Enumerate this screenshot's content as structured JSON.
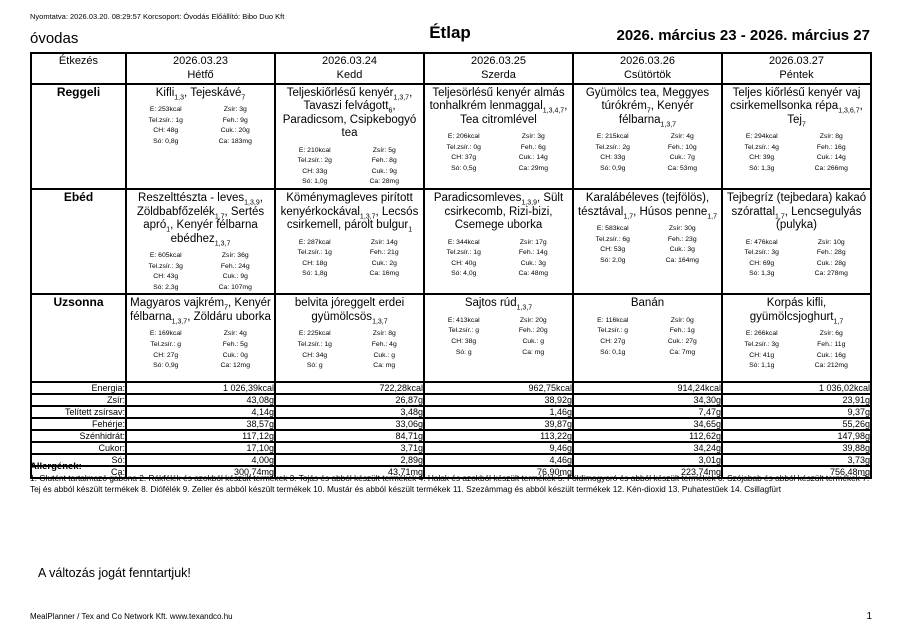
{
  "page": {
    "print_line": "Nyomtatva: 2026.03.20. 08:29:57 Korcsoport: Óvodás Előállító: Bibo Duo Kft",
    "group_name": "óvodas",
    "title": "Étlap",
    "date_range": "2026. március 23 - 2026. március 27",
    "notice": "A változás jogát fenntartjuk!",
    "footer": "MealPlanner / Tex and Co Network Kft. www.texandco.hu",
    "page_number": "1"
  },
  "table": {
    "corner_label": "Étkezés",
    "row_labels": {
      "reggeli": "Reggeli",
      "ebed": "Ebéd",
      "uzsonna": "Uzsonna"
    },
    "summary_labels": [
      "Energia:",
      "Zsír:",
      "Telített zsírsav:",
      "Fehérje:",
      "Szénhidrát:",
      "Cukor:",
      "Só:",
      "Ca:"
    ]
  },
  "days": [
    {
      "date": "2026.03.23",
      "day": "Hétfő",
      "meals": {
        "reggeli": {
          "title": "Kifli~1,3~, Tejeskávé~7~",
          "nut": [
            "E: 253kcal",
            "Tel.zsír.: 1g",
            "CH: 48g",
            "Só: 0,8g",
            "Zsír: 3g",
            "Feh.: 9g",
            "Cuk.: 20g",
            "Ca: 183mg"
          ]
        },
        "ebed": {
          "title": "Reszelttészta - leves~1,3,9~, Zöldbabfőzelék~1,7~, Sertés apró~1~, Kenyér félbarna ebédhez~1,3,7~",
          "nut": [
            "E: 605kcal",
            "Tel.zsír.: 3g",
            "CH: 43g",
            "Só: 2,3g",
            "Zsír: 36g",
            "Feh.: 24g",
            "Cuk.: 9g",
            "Ca: 107mg"
          ]
        },
        "uzsonna": {
          "title": "Magyaros vajkrém~7~, Kenyér félbarna~1,3,7~, Zöldáru uborka",
          "nut": [
            "E: 169kcal",
            "Tel.zsír.: g",
            "CH: 27g",
            "Só: 0,9g",
            "Zsír: 4g",
            "Feh.: 5g",
            "Cuk.: 0g",
            "Ca: 12mg"
          ]
        }
      },
      "totals": [
        "1 026,39kcal",
        "43,08g",
        "4,14g",
        "38,57g",
        "117,12g",
        "17,10g",
        "4,00g",
        "300,74mg"
      ]
    },
    {
      "date": "2026.03.24",
      "day": "Kedd",
      "meals": {
        "reggeli": {
          "title": "Teljeskiőrlésű kenyér~1,3,7~, Tavaszi felvágott~6~, Paradicsom, Csipkebogyó tea",
          "nut": [
            "E: 210kcal",
            "Tel.zsír.: 2g",
            "CH: 33g",
            "Só: 1,0g",
            "Zsír: 5g",
            "Feh.: 8g",
            "Cuk.: 9g",
            "Ca: 28mg"
          ]
        },
        "ebed": {
          "title": "Köménymagleves pirított kenyérkockával~1,3,7~, Lecsós csirkemell, párolt bulgur~1~",
          "nut": [
            "E: 287kcal",
            "Tel.zsír.: 1g",
            "CH: 18g",
            "Só: 1,8g",
            "Zsír: 14g",
            "Feh.: 21g",
            "Cuk.: 2g",
            "Ca: 16mg"
          ]
        },
        "uzsonna": {
          "title": "belvita jóreggelt erdei gyümölcsös~1,3,7~",
          "nut": [
            "E: 225kcal",
            "Tel.zsír.: 1g",
            "CH: 34g",
            "Só: g",
            "Zsír: 8g",
            "Feh.: 4g",
            "Cuk.: g",
            "Ca: mg"
          ]
        }
      },
      "totals": [
        "722,28kcal",
        "26,87g",
        "3,48g",
        "33,06g",
        "84,71g",
        "3,71g",
        "2,89g",
        "43,71mg"
      ]
    },
    {
      "date": "2026.03.25",
      "day": "Szerda",
      "meals": {
        "reggeli": {
          "title": "Teljesörlésű kenyér almás tonhalkrém lenmaggal~1,3,4,7~, Tea citromlével",
          "nut": [
            "E: 206kcal",
            "Tel.zsír.: 0g",
            "CH: 37g",
            "Só: 0,5g",
            "Zsír: 3g",
            "Feh.: 6g",
            "Cuk.: 14g",
            "Ca: 29mg"
          ]
        },
        "ebed": {
          "title": "Paradicsomleves~1,3,9~, Sült csirkecomb, Rizi-bizi, Csemege uborka",
          "nut": [
            "E: 344kcal",
            "Tel.zsír.: 1g",
            "CH: 40g",
            "Só: 4,0g",
            "Zsír: 17g",
            "Feh.: 14g",
            "Cuk.: 3g",
            "Ca: 48mg"
          ]
        },
        "uzsonna": {
          "title": "Sajtos rúd~1,3,7~",
          "nut": [
            "E: 413kcal",
            "Tel.zsír.: g",
            "CH: 38g",
            "Só: g",
            "Zsír: 20g",
            "Feh.: 20g",
            "Cuk.: g",
            "Ca: mg"
          ]
        }
      },
      "totals": [
        "962,75kcal",
        "38,92g",
        "1,46g",
        "39,87g",
        "113,22g",
        "9,46g",
        "4,46g",
        "76,90mg"
      ]
    },
    {
      "date": "2026.03.26",
      "day": "Csütörtök",
      "meals": {
        "reggeli": {
          "title": "Gyümölcs tea, Meggyes túrókrém~7~, Kenyér félbarna~1,3,7~",
          "nut": [
            "E: 215kcal",
            "Tel.zsír.: 2g",
            "CH: 33g",
            "Só: 0,9g",
            "Zsír: 4g",
            "Feh.: 10g",
            "Cuk.: 7g",
            "Ca: 53mg"
          ]
        },
        "ebed": {
          "title": "Karalábéleves (tejfölös), tésztával~1,7~, Húsos penne~1,7~",
          "nut": [
            "E: 583kcal",
            "Tel.zsír.: 6g",
            "CH: 53g",
            "Só: 2,0g",
            "Zsír: 30g",
            "Feh.: 23g",
            "Cuk.: 3g",
            "Ca: 164mg"
          ]
        },
        "uzsonna": {
          "title": "Banán",
          "nut": [
            "E: 116kcal",
            "Tel.zsír.: g",
            "CH: 27g",
            "Só: 0,1g",
            "Zsír: 0g",
            "Feh.: 1g",
            "Cuk.: 27g",
            "Ca: 7mg"
          ]
        }
      },
      "totals": [
        "914,24kcal",
        "34,30g",
        "7,47g",
        "34,65g",
        "112,62g",
        "34,24g",
        "3,01g",
        "223,74mg"
      ]
    },
    {
      "date": "2026.03.27",
      "day": "Péntek",
      "meals": {
        "reggeli": {
          "title": "Teljes kiőrlésű kenyér vaj csirkemellsonka répa~1,3,6,7~, Tej~7~",
          "nut": [
            "E: 294kcal",
            "Tel.zsír.: 4g",
            "CH: 39g",
            "Só: 1,3g",
            "Zsír: 8g",
            "Feh.: 16g",
            "Cuk.: 14g",
            "Ca: 266mg"
          ]
        },
        "ebed": {
          "title": "Tejbegríz (tejbedara) kakaó szórattal~1,7~, Lencsegulyás (pulyka)",
          "nut": [
            "E: 476kcal",
            "Tel.zsír.: 3g",
            "CH: 69g",
            "Só: 1,3g",
            "Zsír: 10g",
            "Feh.: 28g",
            "Cuk.: 28g",
            "Ca: 278mg"
          ]
        },
        "uzsonna": {
          "title": "Korpás kifli, gyümölcsjoghurt~1,7~",
          "nut": [
            "E: 266kcal",
            "Tel.zsír.: 3g",
            "CH: 41g",
            "Só: 1,1g",
            "Zsír: 6g",
            "Feh.: 11g",
            "Cuk.: 16g",
            "Ca: 212mg"
          ]
        }
      },
      "totals": [
        "1 036,02kcal",
        "23,91g",
        "9,37g",
        "55,26g",
        "147,98g",
        "39,88g",
        "3,73g",
        "756,48mg"
      ]
    }
  ],
  "allergens": {
    "heading": "Allergének:",
    "text": "1. Glutént tartalmazó gabona 2. Rákfélék és azokból készült termékek 3. Tojás és abból készült termékek 4. Halak és azokból készült termékek 5. Földimogyoró és abból készült termékek 6. Szójabab és abból készült termékek 7. Tej és abból készült termékek 8. Diófélék 9. Zeller és abból készült termékek 10. Mustár és abból készült termékek 11. Szezámmag és abból készült termékek 12. Kén-dioxid 13. Puhatestűek 14. Csillagfürt"
  }
}
